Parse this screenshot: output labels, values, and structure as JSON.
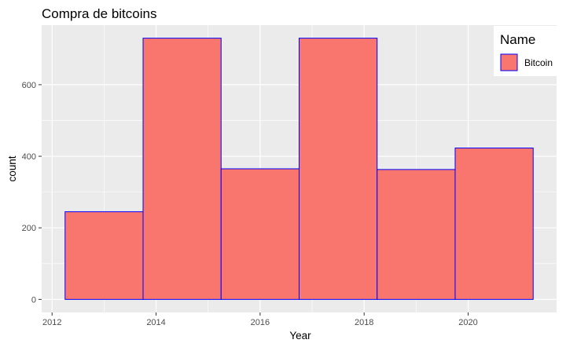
{
  "chart_data": {
    "type": "bar",
    "title": "Compra de bitcoins",
    "xlabel": "Year",
    "ylabel": "count",
    "bins": [
      {
        "x_start": 2012.25,
        "x_end": 2013.75,
        "count": 245
      },
      {
        "x_start": 2013.75,
        "x_end": 2015.25,
        "count": 730
      },
      {
        "x_start": 2015.25,
        "x_end": 2016.75,
        "count": 365
      },
      {
        "x_start": 2016.75,
        "x_end": 2018.25,
        "count": 730
      },
      {
        "x_start": 2018.25,
        "x_end": 2019.75,
        "count": 363
      },
      {
        "x_start": 2019.75,
        "x_end": 2021.25,
        "count": 423
      }
    ],
    "x_ticks": [
      "2012",
      "2014",
      "2016",
      "2018",
      "2020"
    ],
    "y_ticks": [
      "0",
      "200",
      "400",
      "600"
    ],
    "xlim": [
      2011.8,
      2021.7
    ],
    "ylim": [
      -36.5,
      766.5
    ],
    "grid": true,
    "legend": {
      "title": "Name",
      "position": "top-right",
      "entries": [
        {
          "label": "Bitcoin",
          "fill": "#f8766d",
          "stroke": "#0000ff"
        }
      ]
    },
    "colors": {
      "fill": "#f8766d",
      "stroke": "#0000ff",
      "panel": "#ebebeb",
      "grid": "#ffffff"
    }
  }
}
